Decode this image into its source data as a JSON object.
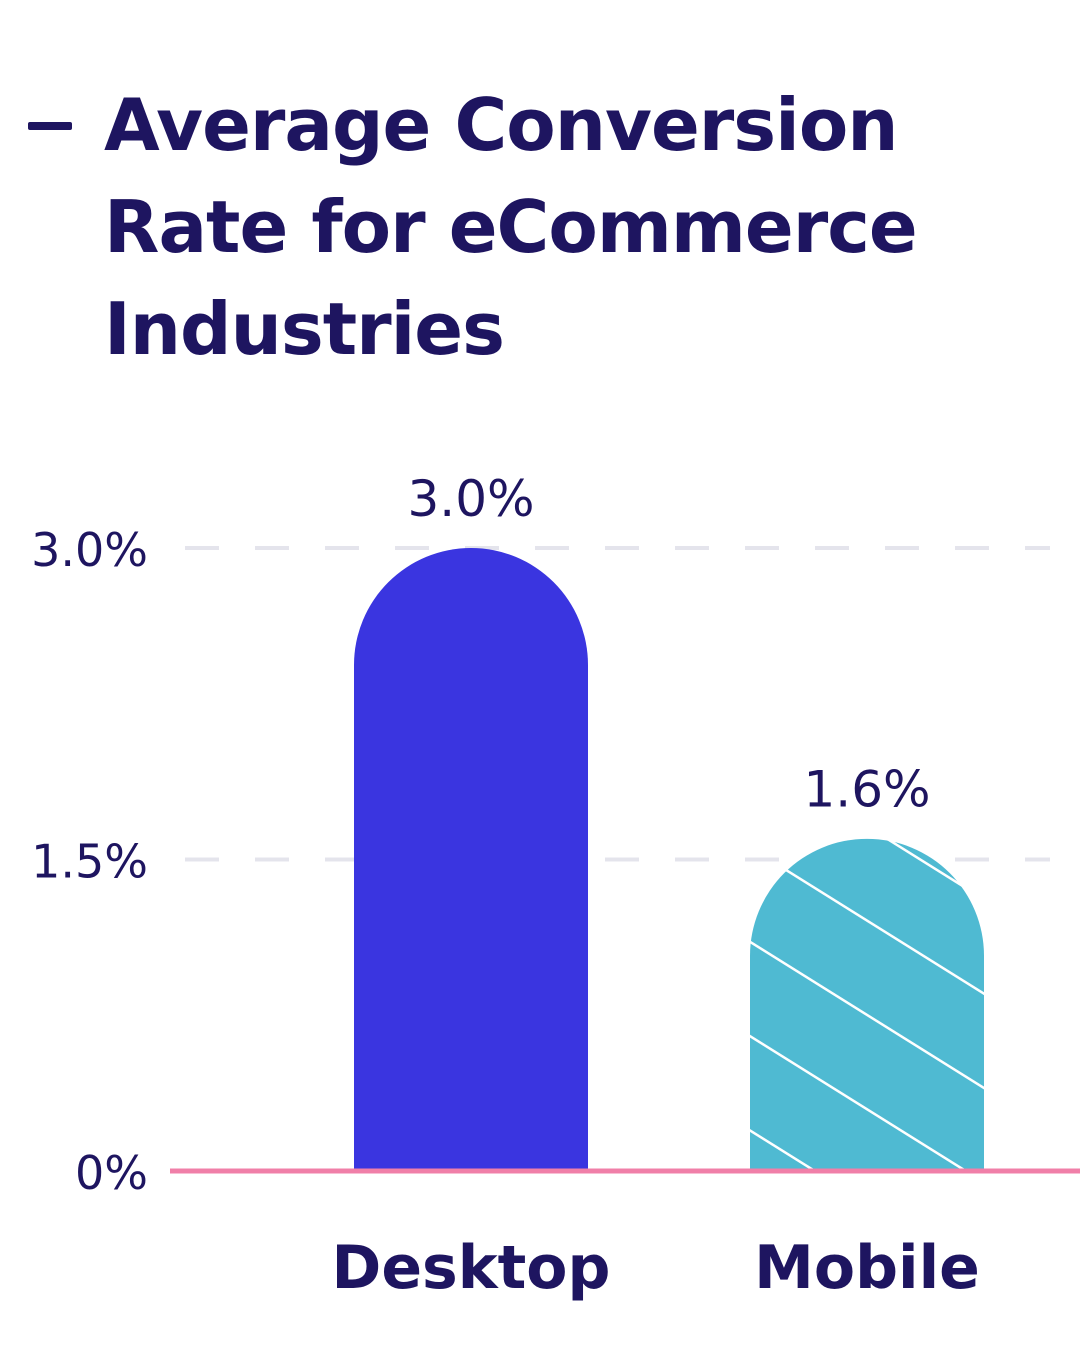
{
  "title": "Average Conversion Rate for eCommerce Industries",
  "colors": {
    "text": "#1e1560",
    "desktop_bar": "#3a35e0",
    "mobile_bar": "#4fbad2",
    "hatch": "#ffffff",
    "baseline": "#f07fa8",
    "grid": "#e4e4ec"
  },
  "chart_data": {
    "type": "bar",
    "title": "Average Conversion Rate for eCommerce Industries",
    "categories": [
      "Desktop",
      "Mobile"
    ],
    "values": [
      3.0,
      1.6
    ],
    "value_labels": [
      "3.0%",
      "1.6%"
    ],
    "series": [
      {
        "values": [
          3.0,
          1.6
        ]
      }
    ],
    "y_ticks": [
      {
        "value": 0,
        "label": "0%"
      },
      {
        "value": 1.5,
        "label": "1.5%"
      },
      {
        "value": 3.0,
        "label": "3.0%"
      }
    ],
    "ylim": [
      0,
      3.0
    ],
    "xlabel": "",
    "ylabel": "",
    "grid": true,
    "legend": "none",
    "bar_styles": [
      "solid",
      "hatched"
    ]
  }
}
